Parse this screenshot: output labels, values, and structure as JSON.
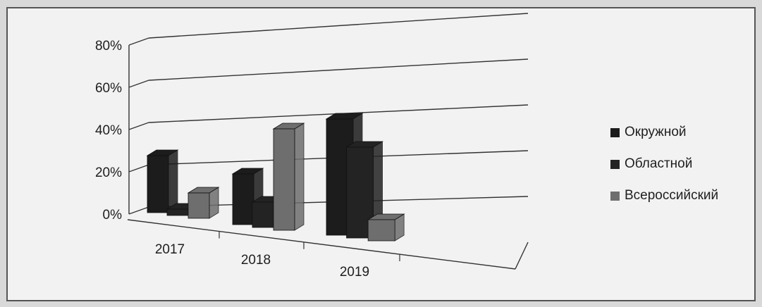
{
  "chart_data": {
    "type": "bar",
    "categories": [
      "2017",
      "2018",
      "2019"
    ],
    "series": [
      {
        "name": "Окружной",
        "values": [
          27,
          24,
          55
        ]
      },
      {
        "name": "Областной",
        "values": [
          3,
          12,
          43
        ]
      },
      {
        "name": "Всероссийский",
        "values": [
          12,
          48,
          10
        ]
      }
    ],
    "y_ticks": [
      "0%",
      "20%",
      "40%",
      "60%",
      "80%"
    ],
    "ylim": [
      0,
      80
    ],
    "grid": true,
    "legend_position": "right",
    "colors": {
      "Окружной": "#1c1c1c",
      "Областной": "#232323",
      "Всероссийский": "#6e6e6e"
    }
  }
}
